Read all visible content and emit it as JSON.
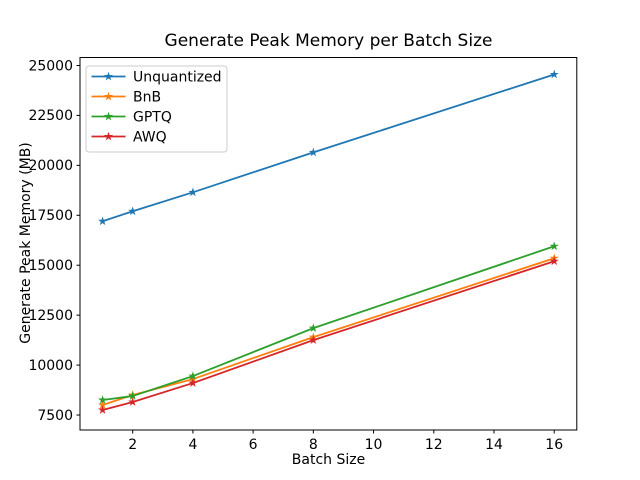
{
  "chart_data": {
    "type": "line",
    "title": "Generate Peak Memory per Batch Size",
    "xlabel": "Batch Size",
    "ylabel": "Generate Peak Memory (MB)",
    "x": [
      1,
      2,
      4,
      8,
      16
    ],
    "series": [
      {
        "name": "Unquantized",
        "color": "#1f77b4",
        "values": [
          17200,
          17700,
          18650,
          20650,
          24550
        ]
      },
      {
        "name": "BnB",
        "color": "#ff7f0e",
        "values": [
          8000,
          8500,
          9300,
          11400,
          15350
        ]
      },
      {
        "name": "GPTQ",
        "color": "#2ca02c",
        "values": [
          8250,
          8450,
          9450,
          11850,
          15950
        ]
      },
      {
        "name": "AWQ",
        "color": "#d62728",
        "values": [
          7750,
          8150,
          9100,
          11250,
          15200
        ]
      }
    ],
    "marker": "star",
    "xticks": [
      2,
      4,
      6,
      8,
      10,
      12,
      14,
      16
    ],
    "yticks": [
      7500,
      10000,
      12500,
      15000,
      17500,
      20000,
      22500,
      25000
    ],
    "xlim": [
      0.25,
      16.75
    ],
    "ylim": [
      6750,
      25400
    ],
    "legend_position": "upper left",
    "grid": false,
    "frame_color": "#000000",
    "legend_border_color": "#cccccc",
    "background_color": "#ffffff"
  }
}
